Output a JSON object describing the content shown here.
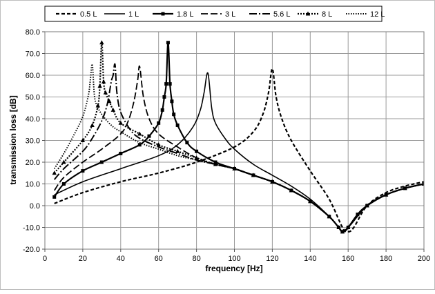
{
  "chart_data": {
    "type": "line",
    "title": "",
    "xlabel": "frequency [Hz]",
    "ylabel": "transmission loss [dB]",
    "xlim": [
      0,
      200
    ],
    "ylim": [
      -20,
      80
    ],
    "x_ticks": [
      "0",
      "20",
      "40",
      "60",
      "80",
      "100",
      "120",
      "140",
      "160",
      "180",
      "200"
    ],
    "y_ticks": [
      "-20.0",
      "-10.0",
      "0.0",
      "10.0",
      "20.0",
      "30.0",
      "40.0",
      "50.0",
      "60.0",
      "70.0",
      "80.0"
    ],
    "grid": true,
    "legend_position": "top",
    "colors": {
      "series": "#000000",
      "grid": "#9a9a9a",
      "background": "#ffffff"
    },
    "series": [
      {
        "name": "0.5 L",
        "style": "short-dash",
        "x": [
          5,
          20,
          40,
          60,
          80,
          100,
          110,
          115,
          118,
          120,
          122,
          125,
          130,
          140,
          150,
          157,
          160,
          163,
          170,
          180,
          190,
          200
        ],
        "y": [
          1,
          6,
          11,
          15,
          20,
          27,
          34,
          42,
          52,
          63,
          50,
          40,
          30,
          16,
          3,
          -10,
          -12,
          -10,
          0,
          6,
          9,
          11
        ]
      },
      {
        "name": "1 L",
        "style": "solid",
        "x": [
          5,
          20,
          40,
          60,
          70,
          78,
          82,
          84,
          86,
          88,
          90,
          95,
          100,
          110,
          120,
          130,
          140,
          150,
          155,
          158,
          162,
          170,
          180,
          190,
          200
        ],
        "y": [
          5,
          11,
          17,
          23,
          28,
          36,
          44,
          52,
          61,
          45,
          38,
          31,
          26,
          19,
          14,
          9,
          3,
          -5,
          -10,
          -12,
          -8,
          0,
          5,
          8,
          10
        ]
      },
      {
        "name": "1.8 L",
        "style": "solid-square-markers",
        "x": [
          5,
          10,
          20,
          30,
          40,
          50,
          55,
          60,
          62,
          63,
          64,
          65,
          66,
          67,
          68,
          70,
          75,
          80,
          90,
          100,
          110,
          120,
          130,
          140,
          150,
          155,
          157,
          160,
          165,
          170,
          180,
          190,
          200
        ],
        "y": [
          4,
          10,
          16,
          20,
          24,
          28,
          32,
          38,
          44,
          50,
          56,
          75,
          56,
          48,
          42,
          37,
          29,
          25,
          20,
          17,
          14,
          11,
          7,
          2,
          -5,
          -10,
          -12,
          -10,
          -4,
          0,
          5,
          8,
          10
        ]
      },
      {
        "name": "3 L",
        "style": "long-dash",
        "x": [
          5,
          10,
          20,
          30,
          40,
          44,
          47,
          49,
          50,
          52,
          55,
          60,
          70,
          80,
          90,
          100,
          110,
          120,
          130,
          140,
          150,
          155,
          157,
          160,
          170,
          180,
          190,
          200
        ],
        "y": [
          7,
          13,
          20,
          26,
          33,
          39,
          48,
          58,
          64,
          50,
          40,
          33,
          27,
          22,
          19,
          17,
          14,
          11,
          7,
          2,
          -5,
          -10,
          -12,
          -10,
          0,
          5,
          8,
          10
        ]
      },
      {
        "name": "5.6 L",
        "style": "dash-dot",
        "x": [
          5,
          10,
          20,
          25,
          30,
          33,
          35,
          36,
          37,
          38,
          40,
          45,
          50,
          60,
          70,
          80,
          90,
          100,
          110,
          120,
          130,
          140,
          150,
          155,
          157,
          160,
          170,
          180,
          190,
          200
        ],
        "y": [
          12,
          17,
          25,
          31,
          39,
          47,
          57,
          60,
          65,
          52,
          43,
          35,
          31,
          27,
          24,
          21,
          19,
          17,
          14,
          11,
          7,
          2,
          -5,
          -10,
          -12,
          -10,
          0,
          5,
          8,
          10
        ]
      },
      {
        "name": "8 L",
        "style": "dotted-triangle-markers",
        "x": [
          5,
          10,
          20,
          25,
          28,
          29,
          30,
          31,
          32,
          34,
          36,
          40,
          50,
          60,
          70,
          80,
          90,
          100,
          110,
          120,
          130,
          140,
          150,
          155,
          157,
          160,
          170,
          180,
          190,
          200
        ],
        "y": [
          15,
          20,
          30,
          37,
          46,
          55,
          75,
          57,
          52,
          48,
          44,
          38,
          33,
          28,
          25,
          22,
          19,
          17,
          14,
          11,
          7,
          2,
          -5,
          -10,
          -12,
          -10,
          0,
          5,
          8,
          10
        ]
      },
      {
        "name": "12 L",
        "style": "dotted",
        "x": [
          5,
          10,
          15,
          20,
          23,
          24,
          25,
          26,
          27,
          30,
          35,
          40,
          50,
          60,
          70,
          80,
          90,
          100,
          110,
          120,
          130,
          140,
          150,
          155,
          157,
          160,
          170,
          180,
          190,
          200
        ],
        "y": [
          17,
          24,
          32,
          41,
          51,
          58,
          65,
          52,
          47,
          42,
          37,
          34,
          29,
          26,
          23,
          21,
          19,
          17,
          14,
          11,
          7,
          2,
          -5,
          -10,
          -12,
          -10,
          0,
          5,
          8,
          10
        ]
      }
    ]
  }
}
